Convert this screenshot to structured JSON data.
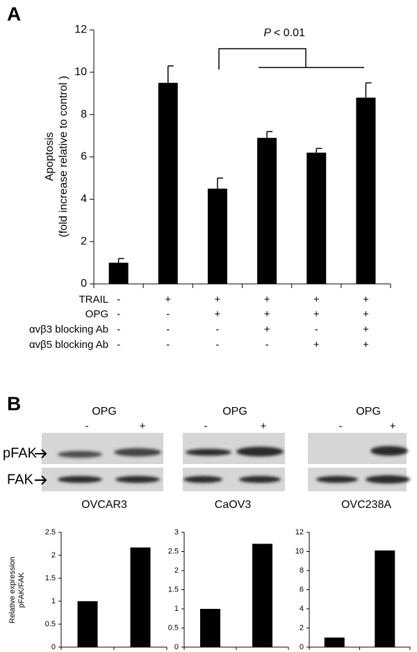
{
  "chart_data": [
    {
      "type": "bar",
      "panel": "A",
      "ylabel": [
        "Apoptosis",
        "(fold increase relative to control )"
      ],
      "annotation": [
        "P",
        "< 0.01"
      ],
      "series": [
        {
          "color": "#000000",
          "values": [
            1,
            9.5,
            4.5,
            6.9,
            6.2,
            8.8
          ],
          "errors": [
            0.2,
            0.8,
            0.5,
            0.3,
            0.2,
            0.7
          ]
        }
      ],
      "ylim": [
        0,
        12
      ],
      "yticks": [
        0,
        2,
        4,
        6,
        8,
        10,
        12
      ],
      "conditions": [
        {
          "label": "TRAIL",
          "signs": [
            "-",
            "+",
            "+",
            "+",
            "+",
            "+"
          ]
        },
        {
          "label": "OPG",
          "signs": [
            "-",
            "-",
            "+",
            "+",
            "+",
            "+"
          ]
        },
        {
          "label": "αvβ3 blocking Ab",
          "signs": [
            "-",
            "-",
            "-",
            "+",
            "-",
            "+"
          ]
        },
        {
          "label": "αvβ5 blocking Ab",
          "signs": [
            "-",
            "-",
            "-",
            "-",
            "+",
            "+"
          ]
        }
      ]
    },
    {
      "type": "bar",
      "title": "OVCAR3",
      "ylabel": [
        "Relative expression",
        "pFAK/FAK"
      ],
      "series": [
        {
          "color": "#000000",
          "values": [
            1,
            2.17
          ]
        }
      ],
      "ylim": [
        0,
        2.5
      ],
      "yticks": [
        0,
        0.5,
        1,
        1.5,
        2,
        2.5
      ]
    },
    {
      "type": "bar",
      "title": "CaOV3",
      "series": [
        {
          "color": "#000000",
          "values": [
            1,
            2.7
          ]
        }
      ],
      "ylim": [
        0,
        3
      ],
      "yticks": [
        0,
        0.5,
        1,
        1.5,
        2,
        2.5,
        3
      ]
    },
    {
      "type": "bar",
      "title": "OVC238A",
      "series": [
        {
          "color": "#000000",
          "values": [
            1,
            10.1
          ]
        }
      ],
      "ylim": [
        0,
        12
      ],
      "yticks": [
        0,
        2,
        4,
        6,
        8,
        10,
        12
      ]
    }
  ],
  "blots": {
    "panel": "B",
    "rows": [
      "pFAK",
      "FAK"
    ],
    "groups": [
      {
        "treatment": "OPG",
        "signs": [
          "-",
          "+"
        ]
      },
      {
        "treatment": "OPG",
        "signs": [
          "-",
          "+"
        ]
      },
      {
        "treatment": "OPG",
        "signs": [
          "-",
          "+"
        ]
      }
    ]
  }
}
